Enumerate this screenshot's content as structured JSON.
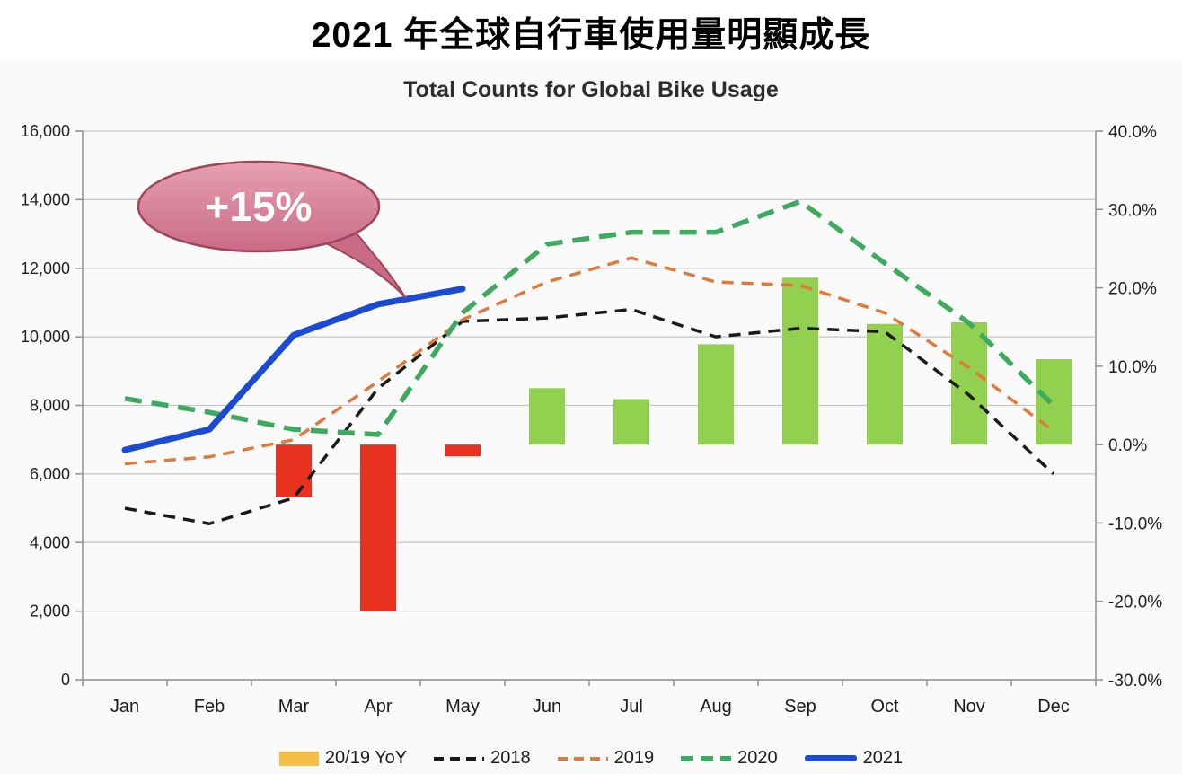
{
  "page": {
    "title": "2021 年全球自行車使用量明顯成長"
  },
  "chart_data": {
    "type": "combo-bar-line",
    "title": "Total Counts for Global Bike Usage",
    "categories": [
      "Jan",
      "Feb",
      "Mar",
      "Apr",
      "May",
      "Jun",
      "Jul",
      "Aug",
      "Sep",
      "Oct",
      "Nov",
      "Dec"
    ],
    "grid": true,
    "legend_position": "bottom",
    "axes": {
      "left": {
        "min": 0,
        "max": 16000,
        "step": 2000,
        "tick_labels": [
          "0",
          "2,000",
          "4,000",
          "6,000",
          "8,000",
          "10,000",
          "12,000",
          "14,000",
          "16,000"
        ]
      },
      "right": {
        "min": -30,
        "max": 40,
        "step": 10,
        "tick_labels": [
          "-30.0%",
          "-20.0%",
          "-10.0%",
          "0.0%",
          "10.0%",
          "20.0%",
          "30.0%",
          "40.0%"
        ]
      }
    },
    "bar_series": {
      "name": "20/19 YoY",
      "axis": "right",
      "values": [
        null,
        null,
        -6.7,
        -21.2,
        -1.5,
        7.2,
        5.8,
        12.8,
        21.3,
        15.4,
        15.6,
        10.9
      ],
      "positive_color": "#92d050",
      "negative_color": "#e8311f",
      "legend_color": "#f3bf45"
    },
    "line_series": [
      {
        "name": "2018",
        "axis": "left",
        "color": "#1a1a1a",
        "dash": "13 9",
        "width": 3.5,
        "values": [
          5000,
          4550,
          5300,
          8500,
          10450,
          10550,
          10800,
          10000,
          10250,
          10150,
          8300,
          6000
        ]
      },
      {
        "name": "2019",
        "axis": "left",
        "color": "#e0793b",
        "dash": "13 9",
        "width": 3.5,
        "values": [
          6300,
          6500,
          7000,
          8700,
          10500,
          11600,
          12300,
          11600,
          11500,
          10700,
          9100,
          7250
        ]
      },
      {
        "name": "2020",
        "axis": "left",
        "color": "#3cab5e",
        "dash": "19 11",
        "width": 5.5,
        "values": [
          8200,
          7800,
          7300,
          7150,
          10700,
          12700,
          13050,
          13050,
          13950,
          12150,
          10400,
          8000
        ]
      },
      {
        "name": "2021",
        "axis": "left",
        "color": "#1b4bd2",
        "dash": null,
        "width": 7,
        "values": [
          6700,
          7300,
          10050,
          10950,
          11400,
          null,
          null,
          null,
          null,
          null,
          null,
          null
        ]
      }
    ],
    "callout": {
      "label": "+15%",
      "fill_top": "#e7a0b2",
      "fill_bottom": "#c96a88",
      "stroke": "#a04458",
      "text_color": "#ffffff"
    },
    "legend": [
      {
        "label": "20/19 YoY",
        "swatch": "rect",
        "color": "#f3bf45"
      },
      {
        "label": "2018",
        "swatch": "dash",
        "color": "#1a1a1a"
      },
      {
        "label": "2019",
        "swatch": "dash",
        "color": "#e0793b"
      },
      {
        "label": "2020",
        "swatch": "dash-thick",
        "color": "#3cab5e"
      },
      {
        "label": "2021",
        "swatch": "line",
        "color": "#1b4bd2"
      }
    ]
  }
}
